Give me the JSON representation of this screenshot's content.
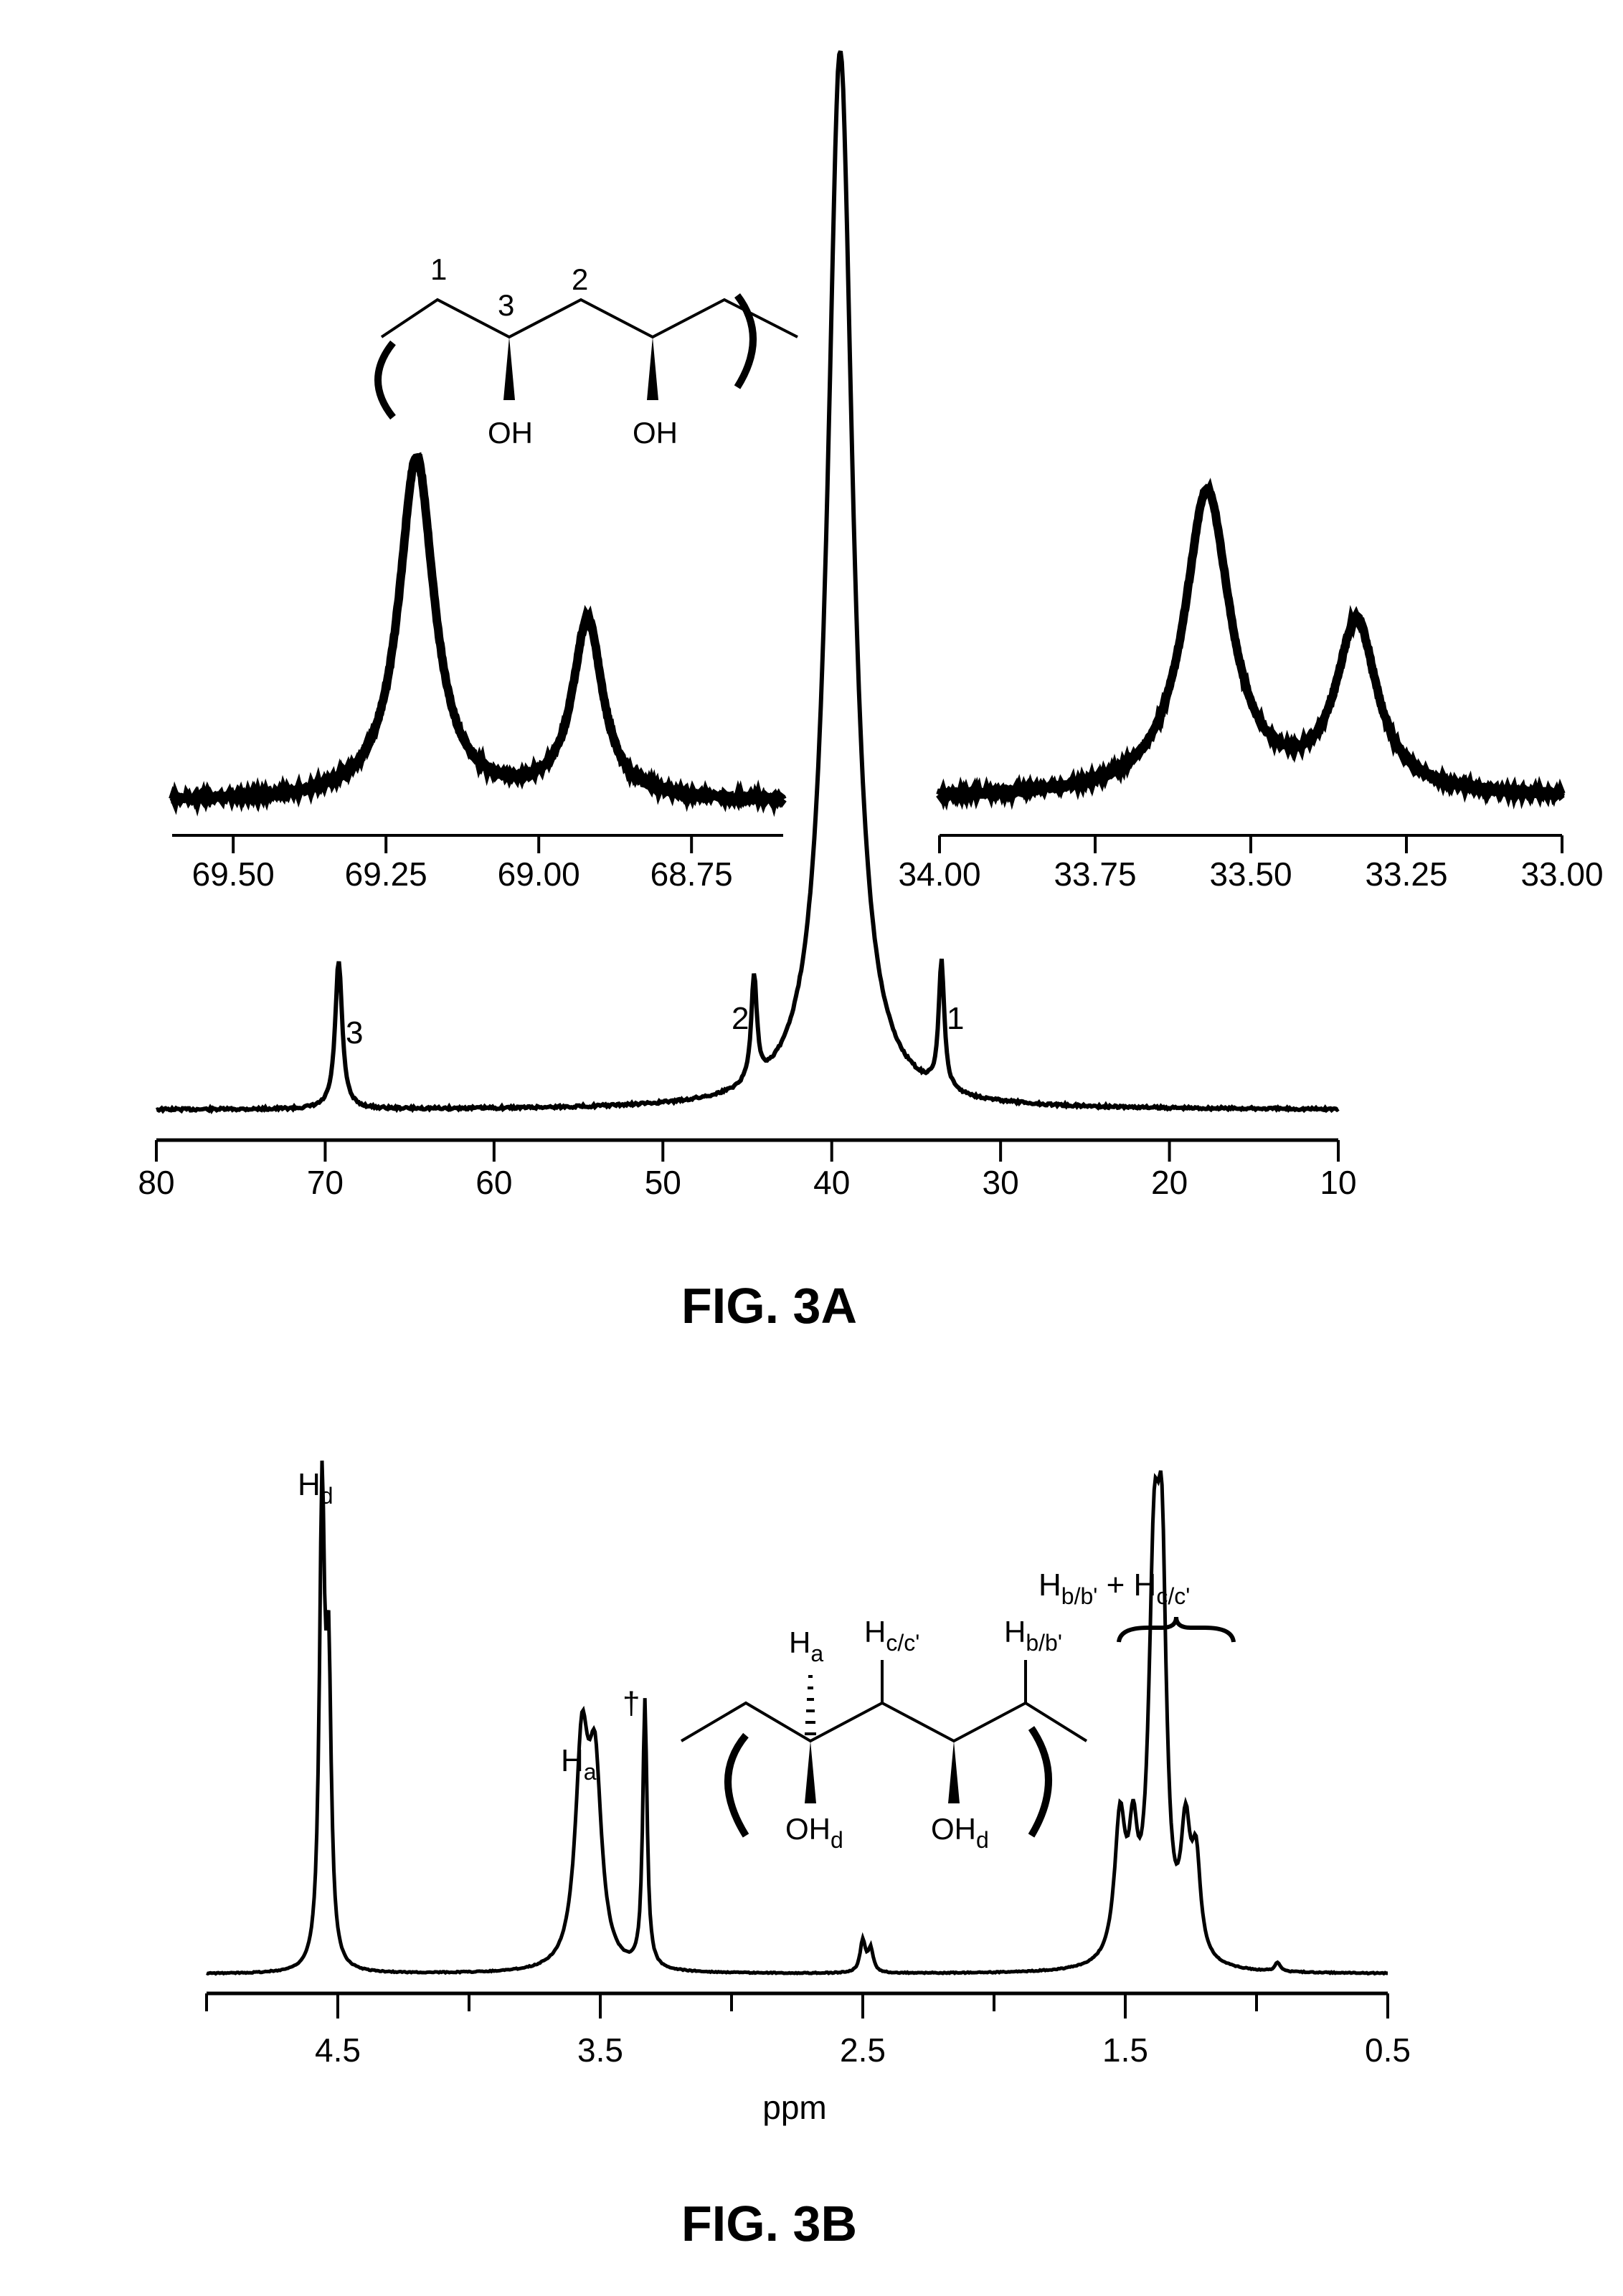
{
  "figure_a": {
    "caption": "FIG. 3A",
    "structure": {
      "label_1": "1",
      "label_2": "2",
      "label_3": "3",
      "oh1": "OH",
      "oh2": "OH"
    },
    "peak_labels": [
      "3",
      "2",
      "1"
    ]
  },
  "figure_b": {
    "caption": "FIG. 3B",
    "xlabel": "ppm",
    "dagger": "†",
    "peak_labels": {
      "hd": {
        "main": "H",
        "sub": "d"
      },
      "ha": {
        "main": "H",
        "sub": "a"
      },
      "hbc": {
        "main1": "H",
        "sub1": "b/b'",
        "plus": " + ",
        "main2": "H",
        "sub2": "c/c'"
      }
    },
    "structure": {
      "ha": {
        "main": "H",
        "sub": "a"
      },
      "hc": {
        "main": "H",
        "sub": "c/c'"
      },
      "hb": {
        "main": "H",
        "sub": "b/b'"
      },
      "ohd1": {
        "main": "OH",
        "sub": "d"
      },
      "ohd2": {
        "main": "OH",
        "sub": "d"
      }
    }
  },
  "chart_data": [
    {
      "type": "line",
      "name": "13C NMR full spectrum",
      "xlim": [
        80,
        10
      ],
      "x_ticks": [
        "80",
        "70",
        "60",
        "50",
        "40",
        "30",
        "20",
        "10"
      ],
      "x_tick_values": [
        80,
        70,
        60,
        50,
        40,
        30,
        20,
        10
      ],
      "peaks": [
        {
          "x": 69.2,
          "height": 0.14,
          "width": 0.25,
          "label": "3"
        },
        {
          "x": 44.6,
          "height": 0.1,
          "width": 0.2,
          "label": "2"
        },
        {
          "x": 39.5,
          "height": 1.0,
          "width": 0.9,
          "label": ""
        },
        {
          "x": 33.5,
          "height": 0.12,
          "width": 0.2,
          "label": "1"
        }
      ]
    },
    {
      "type": "line",
      "name": "13C inset 69.5-68.6",
      "xlim": [
        69.6,
        68.6
      ],
      "x_ticks": [
        "69.50",
        "69.25",
        "69.00",
        "68.75"
      ],
      "x_tick_values": [
        69.5,
        69.25,
        69.0,
        68.75
      ],
      "peaks": [
        {
          "x": 69.2,
          "height": 1.0,
          "width": 0.035
        },
        {
          "x": 68.92,
          "height": 0.52,
          "width": 0.03
        }
      ]
    },
    {
      "type": "line",
      "name": "13C inset 34.0-33.0",
      "xlim": [
        34.0,
        33.0
      ],
      "x_ticks": [
        "34.00",
        "33.75",
        "33.50",
        "33.25",
        "33.00"
      ],
      "x_tick_values": [
        34.0,
        33.75,
        33.5,
        33.25,
        33.0
      ],
      "peaks": [
        {
          "x": 33.57,
          "height": 1.0,
          "width": 0.045
        },
        {
          "x": 33.33,
          "height": 0.56,
          "width": 0.04
        }
      ]
    },
    {
      "type": "line",
      "name": "1H NMR spectrum",
      "xlabel": "ppm",
      "xlim": [
        5.0,
        0.5
      ],
      "x_ticks": [
        "4.5",
        "3.5",
        "2.5",
        "1.5",
        "0.5"
      ],
      "x_tick_values": [
        4.5,
        3.5,
        2.5,
        1.5,
        0.5
      ],
      "peaks": [
        {
          "x": 4.56,
          "height": 1.0,
          "width": 0.012
        },
        {
          "x": 4.535,
          "height": 0.6,
          "width": 0.012
        },
        {
          "x": 3.57,
          "height": 0.46,
          "width": 0.03
        },
        {
          "x": 3.52,
          "height": 0.4,
          "width": 0.03
        },
        {
          "x": 3.33,
          "height": 0.58,
          "width": 0.01
        },
        {
          "x": 2.5,
          "height": 0.07,
          "width": 0.012
        },
        {
          "x": 2.47,
          "height": 0.05,
          "width": 0.012
        },
        {
          "x": 1.52,
          "height": 0.3,
          "width": 0.025
        },
        {
          "x": 1.47,
          "height": 0.22,
          "width": 0.02
        },
        {
          "x": 1.39,
          "height": 0.8,
          "width": 0.025
        },
        {
          "x": 1.36,
          "height": 0.7,
          "width": 0.02
        },
        {
          "x": 1.27,
          "height": 0.26,
          "width": 0.022
        },
        {
          "x": 1.23,
          "height": 0.2,
          "width": 0.02
        },
        {
          "x": 0.92,
          "height": 0.02,
          "width": 0.012
        }
      ]
    }
  ]
}
